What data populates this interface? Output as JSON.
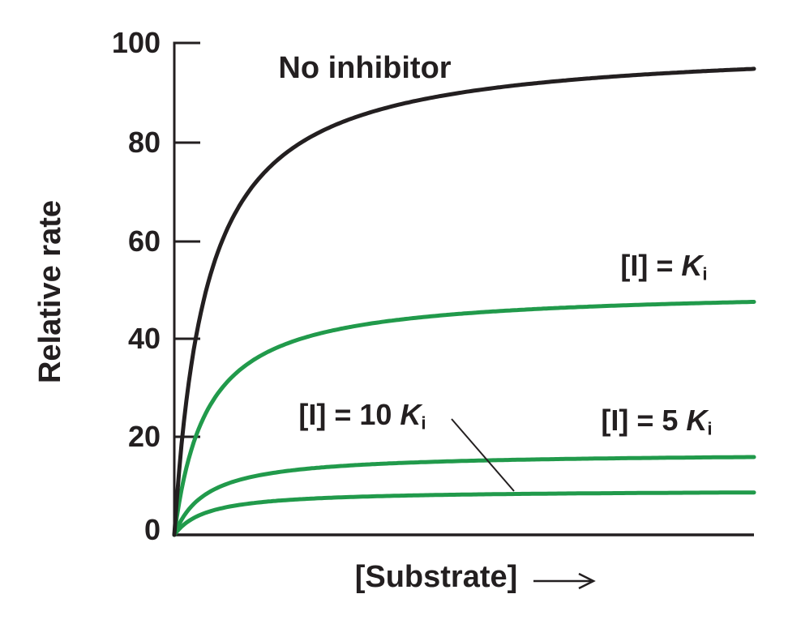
{
  "figure": {
    "background": "#ffffff",
    "ink_color": "#231f20",
    "accent_green": "#219a4b"
  },
  "chart_data": {
    "type": "line",
    "title": "",
    "xlabel": "[Substrate]",
    "ylabel": "Relative rate",
    "ylim": [
      0,
      100
    ],
    "xlim_note": "x axis unlabeled (arbitrary substrate concentration), drawn 0 to 18 Km units",
    "x_range_km": [
      0,
      18
    ],
    "yticks": [
      100,
      80,
      60,
      40,
      20,
      0
    ],
    "grid": false,
    "legend_position": "inline-annotations",
    "model": "michaelis_menten",
    "equation": "v = vmax * s / (km + s)",
    "series": [
      {
        "name": "[I] = Ki",
        "data_name": "curve-ki",
        "vmax": 50,
        "km": 1,
        "plateau_shown": 48,
        "color": "#219a4b",
        "stroke_width": 5
      },
      {
        "name": "[I] = 5 Ki",
        "data_name": "curve-5ki",
        "vmax": 16.7,
        "km": 1,
        "plateau_shown": 16,
        "color": "#219a4b",
        "stroke_width": 5
      },
      {
        "name": "[I] = 10 Ki",
        "data_name": "curve-10ki",
        "vmax": 9.1,
        "km": 1,
        "plateau_shown": 9,
        "color": "#219a4b",
        "stroke_width": 5
      },
      {
        "name": "No inhibitor",
        "data_name": "curve-no-inhibitor",
        "vmax": 100,
        "km": 1,
        "plateau_shown": 95,
        "color": "#231f20",
        "stroke_width": 5
      }
    ]
  },
  "labels": {
    "no_inhibitor": "No inhibitor",
    "ki": {
      "prefix": "[I] = ",
      "symbol": "K",
      "sub": "i"
    },
    "ki5": {
      "prefix": "[I] = 5 ",
      "symbol": "K",
      "sub": "i"
    },
    "ki10": {
      "prefix": "[I] = 10 ",
      "symbol": "K",
      "sub": "i"
    }
  }
}
